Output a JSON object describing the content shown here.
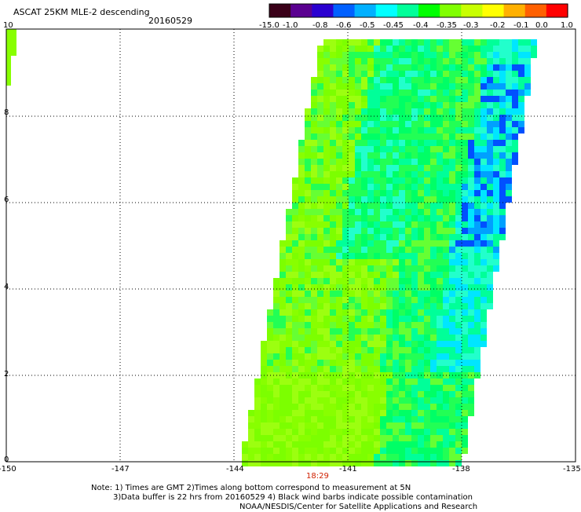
{
  "header": {
    "title": "ASCAT 25KM MLE-2 descending",
    "date": "20160529"
  },
  "colorbar": {
    "colors": [
      "#3a0018",
      "#5a0090",
      "#2a00d0",
      "#0060ff",
      "#00b0ff",
      "#00ffff",
      "#00ff99",
      "#00ff00",
      "#80ff00",
      "#c8ff00",
      "#ffff00",
      "#ffb000",
      "#ff6000",
      "#ff0000"
    ],
    "labels": [
      "-15.0",
      "-1.0",
      "-0.8",
      "-0.6",
      "-0.5",
      "-0.45",
      "-0.4",
      "-0.35",
      "-0.3",
      "-0.2",
      "-0.1",
      "0.0",
      "1.0"
    ]
  },
  "axes": {
    "x_ticks": [
      "-150",
      "-147",
      "-144",
      "-141",
      "-138",
      "-135"
    ],
    "y_ticks": [
      "0",
      "2",
      "4",
      "6",
      "8",
      "10"
    ]
  },
  "time_label": "18:29",
  "notes": {
    "line1": "Note: 1) Times are GMT 2)Times along bottom correspond to measurement at 5N",
    "line2": "3)Data buffer is 22 hrs from 20160529 4) Black wind barbs indicate possible contamination",
    "line3": "NOAA/NESDIS/Center for Satellite Applications and Research"
  }
}
